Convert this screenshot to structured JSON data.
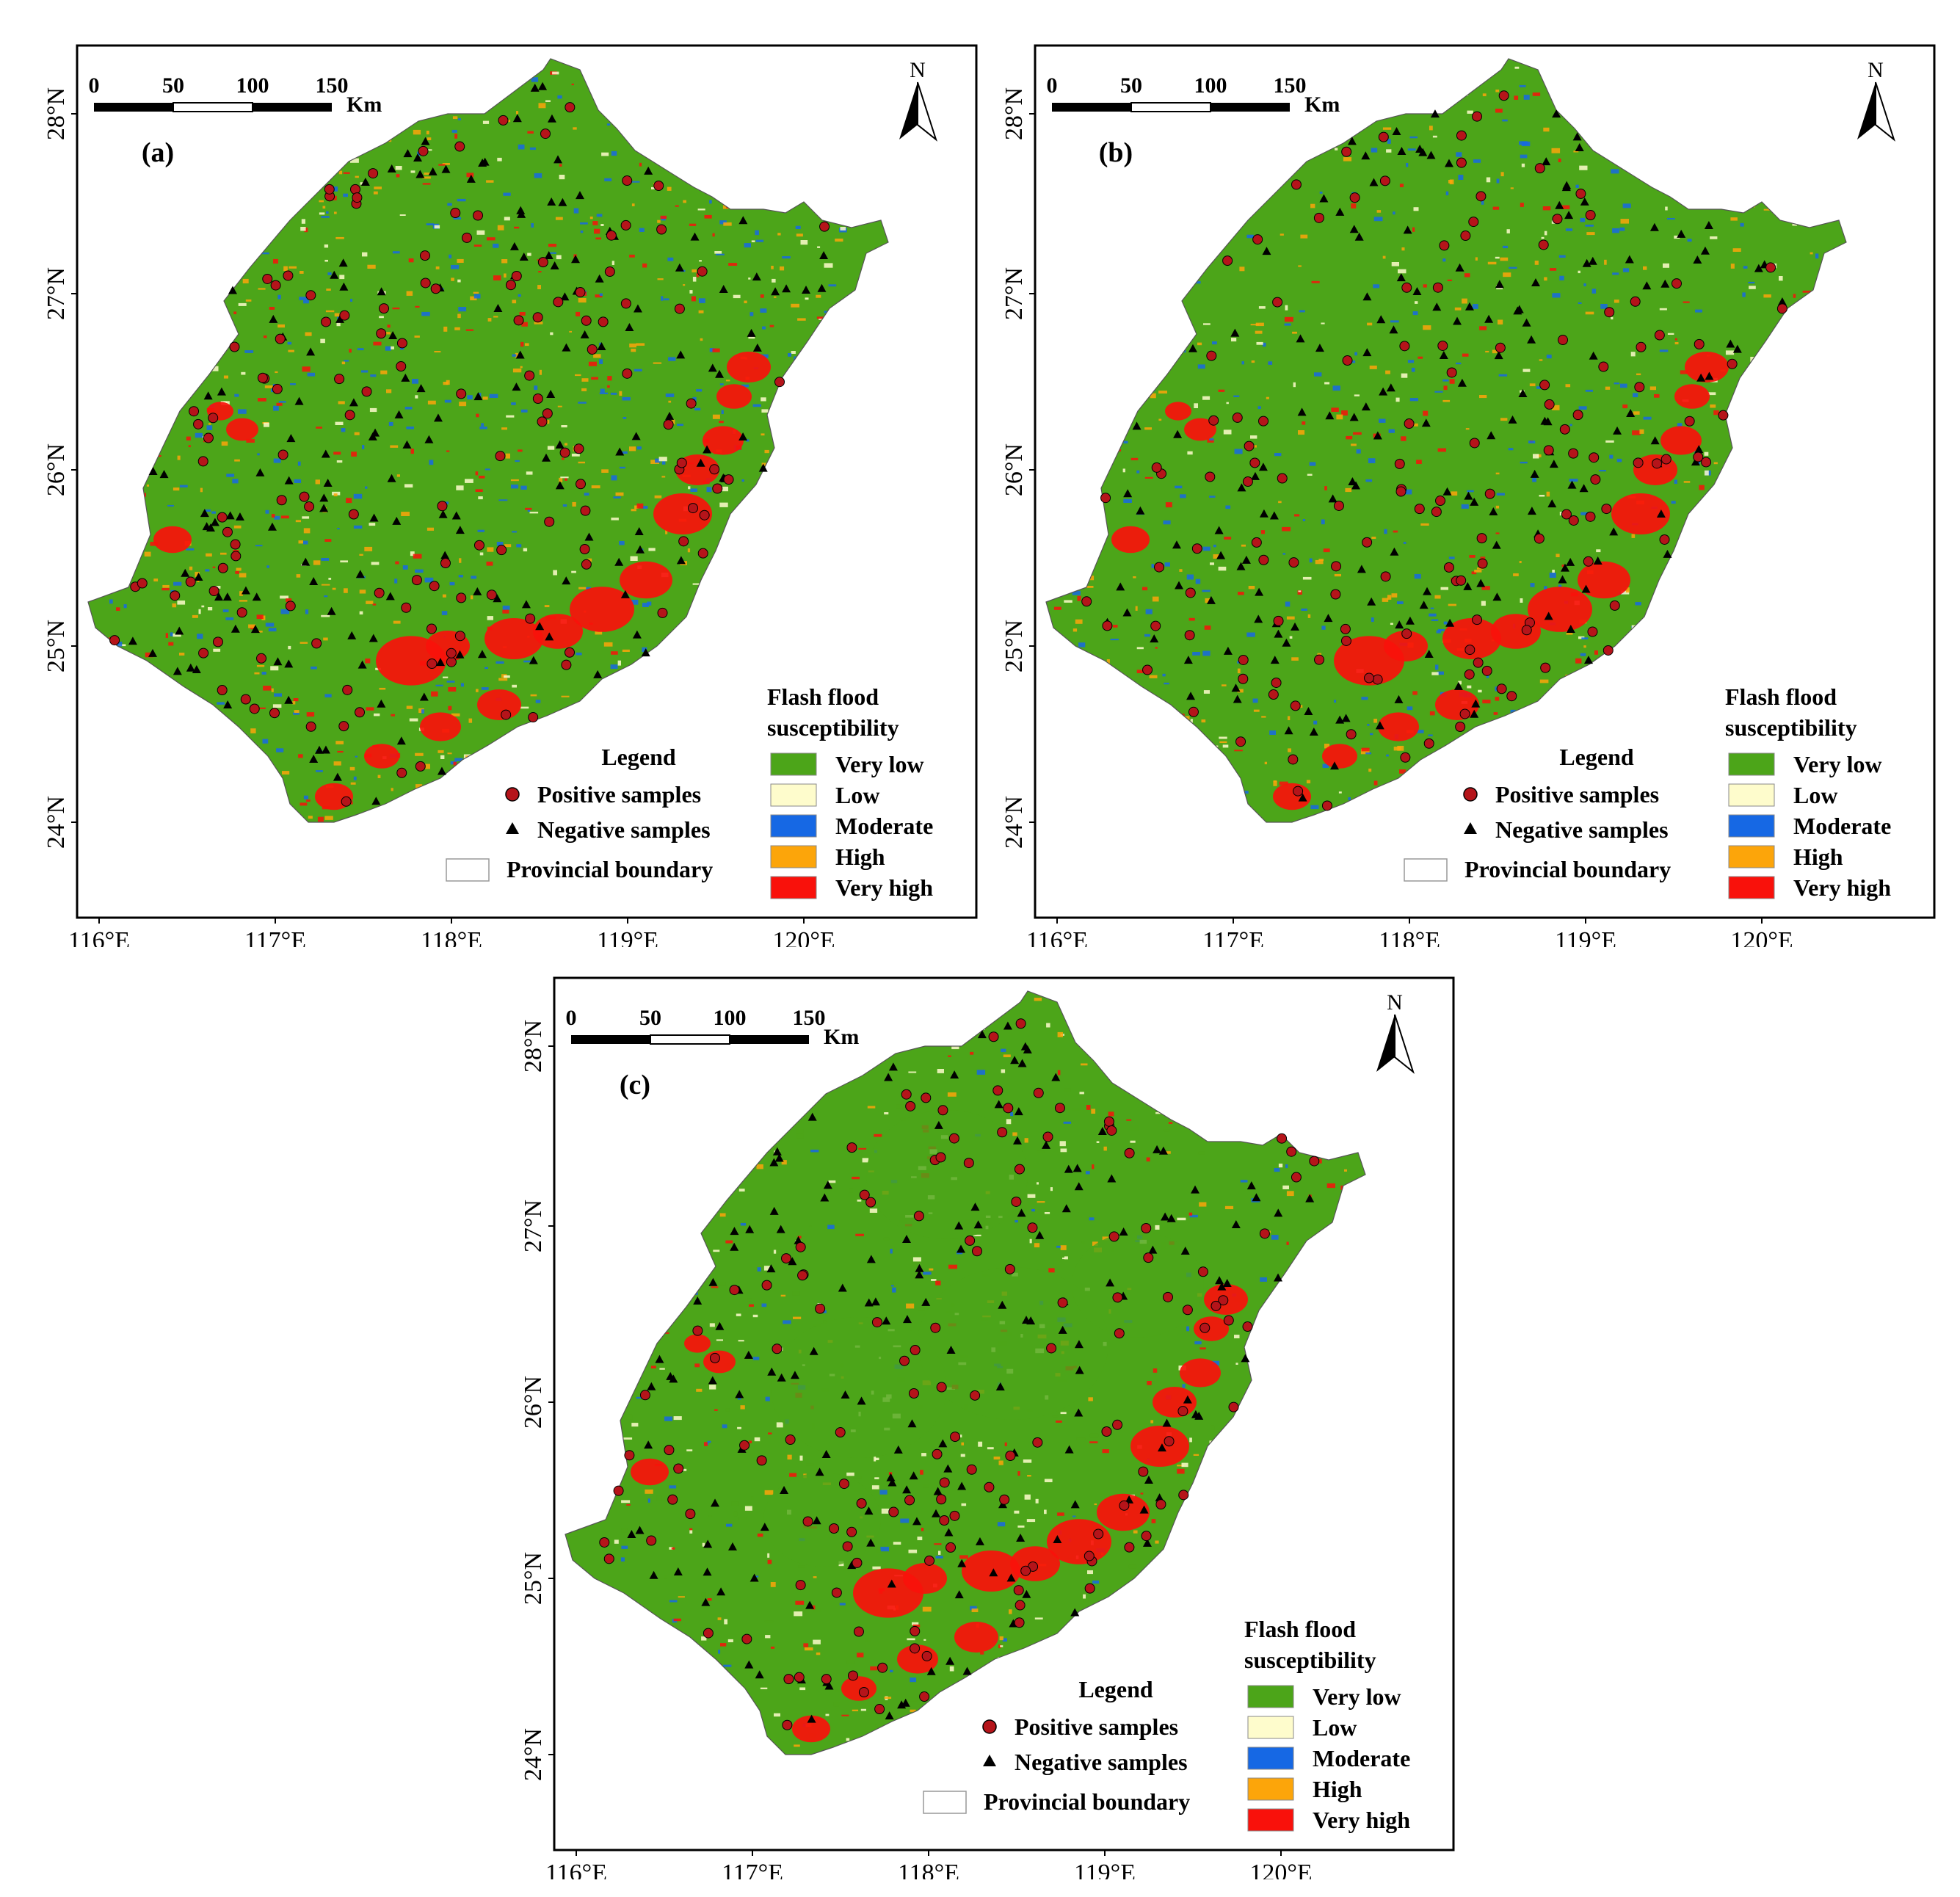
{
  "colors": {
    "very_low": "#4ca519",
    "low": "#fefccc",
    "moderate": "#1668e4",
    "high": "#fca50a",
    "very_high": "#f9110b",
    "positive_fill": "#b5141a",
    "negative_fill": "#000000"
  },
  "scale_bar": {
    "ticks": [
      "0",
      "50",
      "100",
      "150"
    ],
    "unit": "Km"
  },
  "north_label": "N",
  "x_ticks": [
    "116°E",
    "117°E",
    "118°E",
    "119°E",
    "120°E"
  ],
  "y_ticks": [
    "28°N",
    "27°N",
    "26°N",
    "25°N",
    "24°N"
  ],
  "legend": {
    "title": "Legend",
    "positive": "Positive samples",
    "negative": "Negative samples",
    "boundary": "Provincial boundary"
  },
  "susceptibility": {
    "title_line1": "Flash flood",
    "title_line2": "susceptibility",
    "classes": [
      "Very low",
      "Low",
      "Moderate",
      "High",
      "Very high"
    ]
  },
  "panels": [
    {
      "label": "(a)"
    },
    {
      "label": "(b)"
    },
    {
      "label": "(c)"
    }
  ]
}
